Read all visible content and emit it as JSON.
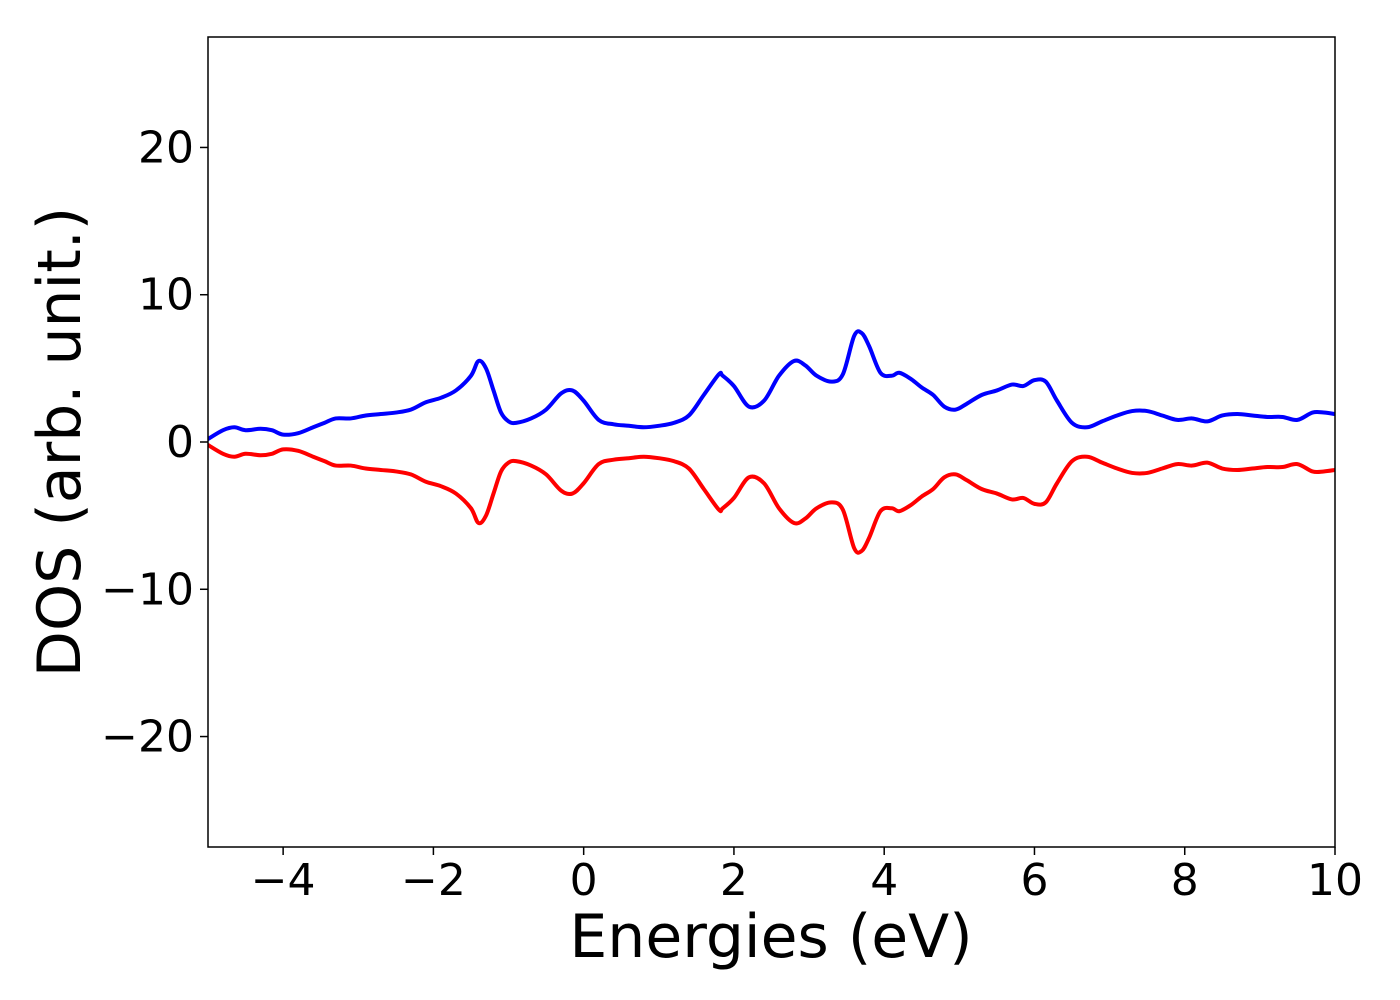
{
  "chart_data": {
    "type": "line",
    "title": "",
    "xlabel": "Energies (eV)",
    "ylabel": "DOS (arb. unit.)",
    "xlim": [
      -5,
      10
    ],
    "ylim": [
      -27.5,
      27.5
    ],
    "xticks": [
      -4,
      -2,
      0,
      2,
      4,
      6,
      8,
      10
    ],
    "xtick_labels": [
      "−4",
      "−2",
      "0",
      "2",
      "4",
      "6",
      "8",
      "10"
    ],
    "yticks": [
      20,
      10,
      0,
      -10,
      -20
    ],
    "ytick_labels": [
      "20",
      "10",
      "0",
      "−10",
      "−20"
    ],
    "grid": false,
    "legend": "none",
    "series": [
      {
        "color": "#0000ff",
        "x": [
          -5.0,
          -4.8,
          -4.65,
          -4.5,
          -4.3,
          -4.15,
          -4.0,
          -3.8,
          -3.6,
          -3.45,
          -3.3,
          -3.1,
          -2.9,
          -2.7,
          -2.5,
          -2.3,
          -2.1,
          -1.9,
          -1.7,
          -1.5,
          -1.4,
          -1.3,
          -1.2,
          -1.1,
          -1.0,
          -0.9,
          -0.7,
          -0.5,
          -0.3,
          -0.15,
          0.0,
          0.2,
          0.4,
          0.6,
          0.8,
          1.0,
          1.2,
          1.4,
          1.6,
          1.8,
          1.85,
          2.0,
          2.2,
          2.4,
          2.6,
          2.8,
          2.95,
          3.1,
          3.3,
          3.45,
          3.6,
          3.7,
          3.8,
          3.95,
          4.1,
          4.2,
          4.35,
          4.5,
          4.65,
          4.8,
          4.95,
          5.1,
          5.3,
          5.5,
          5.7,
          5.85,
          6.0,
          6.15,
          6.3,
          6.5,
          6.7,
          6.9,
          7.1,
          7.3,
          7.5,
          7.7,
          7.9,
          8.1,
          8.3,
          8.5,
          8.7,
          8.9,
          9.1,
          9.3,
          9.5,
          9.7,
          9.85,
          10.0
        ],
        "y": [
          0.2,
          0.8,
          1.0,
          0.8,
          0.9,
          0.8,
          0.5,
          0.6,
          1.0,
          1.3,
          1.6,
          1.6,
          1.8,
          1.9,
          2.0,
          2.2,
          2.7,
          3.0,
          3.5,
          4.5,
          5.5,
          5.0,
          3.5,
          2.0,
          1.4,
          1.3,
          1.6,
          2.2,
          3.3,
          3.5,
          2.8,
          1.5,
          1.2,
          1.1,
          1.0,
          1.1,
          1.3,
          1.8,
          3.2,
          4.6,
          4.5,
          3.8,
          2.4,
          2.8,
          4.5,
          5.5,
          5.2,
          4.5,
          4.1,
          4.6,
          7.2,
          7.4,
          6.5,
          4.7,
          4.5,
          4.7,
          4.3,
          3.7,
          3.2,
          2.4,
          2.2,
          2.6,
          3.2,
          3.5,
          3.9,
          3.8,
          4.2,
          4.1,
          2.8,
          1.3,
          1.0,
          1.4,
          1.8,
          2.1,
          2.1,
          1.8,
          1.5,
          1.6,
          1.4,
          1.8,
          1.9,
          1.8,
          1.7,
          1.7,
          1.5,
          2.0,
          2.0,
          1.9
        ]
      },
      {
        "color": "#ff0000",
        "x": [
          -5.0,
          -4.8,
          -4.65,
          -4.5,
          -4.3,
          -4.15,
          -4.0,
          -3.8,
          -3.6,
          -3.45,
          -3.3,
          -3.1,
          -2.9,
          -2.7,
          -2.5,
          -2.3,
          -2.1,
          -1.9,
          -1.7,
          -1.5,
          -1.4,
          -1.3,
          -1.2,
          -1.1,
          -1.0,
          -0.9,
          -0.7,
          -0.5,
          -0.3,
          -0.15,
          0.0,
          0.2,
          0.4,
          0.6,
          0.8,
          1.0,
          1.2,
          1.4,
          1.6,
          1.8,
          1.85,
          2.0,
          2.2,
          2.4,
          2.6,
          2.8,
          2.95,
          3.1,
          3.3,
          3.45,
          3.6,
          3.7,
          3.8,
          3.95,
          4.1,
          4.2,
          4.35,
          4.5,
          4.65,
          4.8,
          4.95,
          5.1,
          5.3,
          5.5,
          5.7,
          5.85,
          6.0,
          6.15,
          6.3,
          6.5,
          6.7,
          6.9,
          7.1,
          7.3,
          7.5,
          7.7,
          7.9,
          8.1,
          8.3,
          8.5,
          8.7,
          8.9,
          9.1,
          9.3,
          9.5,
          9.7,
          9.85,
          10.0
        ],
        "y": [
          -0.2,
          -0.8,
          -1.0,
          -0.8,
          -0.9,
          -0.8,
          -0.5,
          -0.6,
          -1.0,
          -1.3,
          -1.6,
          -1.6,
          -1.8,
          -1.9,
          -2.0,
          -2.2,
          -2.7,
          -3.0,
          -3.5,
          -4.5,
          -5.5,
          -5.0,
          -3.5,
          -2.0,
          -1.4,
          -1.3,
          -1.6,
          -2.2,
          -3.3,
          -3.5,
          -2.8,
          -1.5,
          -1.2,
          -1.1,
          -1.0,
          -1.1,
          -1.3,
          -1.8,
          -3.2,
          -4.6,
          -4.5,
          -3.8,
          -2.4,
          -2.8,
          -4.5,
          -5.5,
          -5.2,
          -4.5,
          -4.1,
          -4.6,
          -7.2,
          -7.4,
          -6.5,
          -4.7,
          -4.5,
          -4.7,
          -4.3,
          -3.7,
          -3.2,
          -2.4,
          -2.2,
          -2.6,
          -3.2,
          -3.5,
          -3.9,
          -3.8,
          -4.2,
          -4.1,
          -2.8,
          -1.3,
          -1.0,
          -1.4,
          -1.8,
          -2.1,
          -2.1,
          -1.8,
          -1.5,
          -1.6,
          -1.4,
          -1.8,
          -1.9,
          -1.8,
          -1.7,
          -1.7,
          -1.5,
          -2.0,
          -2.0,
          -1.9
        ]
      }
    ]
  }
}
